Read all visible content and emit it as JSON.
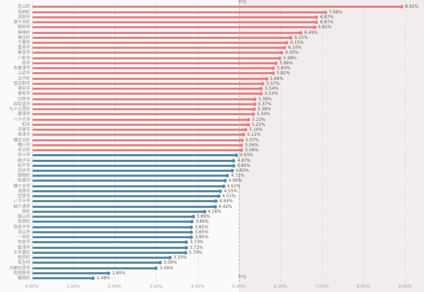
{
  "chart_data": {
    "type": "bar",
    "subtype": "lollipop",
    "orientation": "horizontal",
    "unit": "%",
    "title": "",
    "xlabel": "",
    "ylabel": "",
    "xlim": [
      0,
      9.5
    ],
    "grid": "vertical-dashed",
    "categories": [
      "芝山町",
      "長柄町",
      "成田市",
      "酒々井町",
      "野田市",
      "神崎町",
      "東庄町",
      "千葉市",
      "富里市",
      "東金市",
      "八街市",
      "旭市",
      "木更津市",
      "山武市",
      "白子町",
      "習志野市",
      "浦安市",
      "香取市",
      "印西市",
      "四街道市",
      "九十九里町",
      "勝浦市",
      "八千代市",
      "柏市",
      "市原市",
      "君津市",
      "横芝光町",
      "鴨川市",
      "多古町",
      "市川市",
      "銚子市",
      "松戸市",
      "白井市",
      "御宿町",
      "船橋市",
      "鎌ケ谷市",
      "茂原市",
      "匝瑳市",
      "いすみ市",
      "袖ケ浦市",
      "栄町",
      "館山市",
      "長南町",
      "我孫子市",
      "流山市",
      "一宮町",
      "佐倉市",
      "富津市",
      "大多喜町",
      "睦沢町",
      "長生村",
      "大網白里市",
      "南房総市",
      "鋸南町"
    ],
    "values": [
      8.92,
      7.08,
      6.87,
      6.87,
      6.82,
      6.49,
      6.25,
      6.15,
      6.1,
      6.03,
      5.98,
      5.89,
      5.83,
      5.82,
      5.66,
      5.57,
      5.54,
      5.53,
      5.38,
      5.37,
      5.36,
      5.34,
      5.23,
      5.22,
      5.16,
      5.11,
      5.07,
      5.06,
      5.06,
      4.93,
      4.87,
      4.86,
      4.83,
      4.72,
      4.66,
      4.62,
      4.55,
      4.51,
      4.44,
      4.42,
      4.16,
      3.89,
      3.86,
      3.85,
      3.85,
      3.85,
      3.73,
      3.72,
      3.7,
      3.33,
      3.09,
      3.0,
      1.85,
      1.48
    ],
    "average": {
      "label": "平均",
      "value": 4.99
    },
    "colors": {
      "above_average": "#e88080",
      "below_average": "#5589a6",
      "above_region_bg": "#f2eded",
      "background": "#fbf9f9"
    },
    "x_ticks": [
      "0.00%",
      "1.00%",
      "2.00%",
      "3.00%",
      "4.00%",
      "5.00%",
      "6.00%",
      "7.00%",
      "8.00%",
      "9.00%"
    ],
    "legend": "none"
  }
}
